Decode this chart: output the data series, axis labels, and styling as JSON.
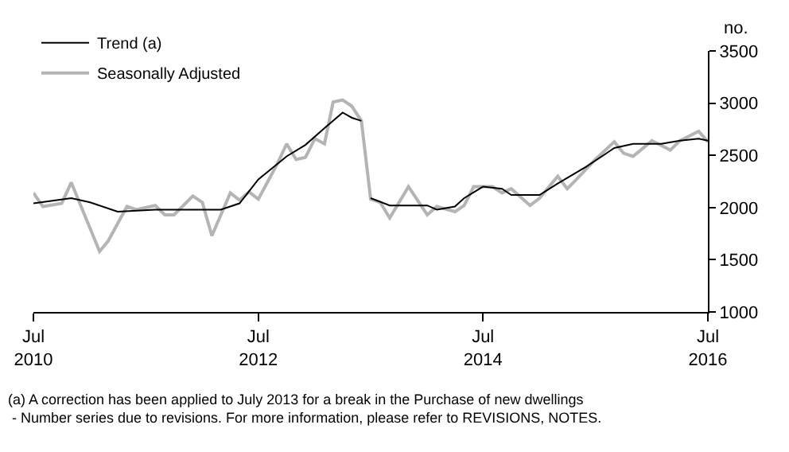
{
  "chart_data": {
    "type": "line",
    "ylabel": "no.",
    "xlim": [
      "2010-07",
      "2016-07"
    ],
    "xticks": [
      {
        "value": "2010-07",
        "label": "Jul\n2010"
      },
      {
        "value": "2012-07",
        "label": "Jul\n2012"
      },
      {
        "value": "2014-07",
        "label": "Jul\n2014"
      },
      {
        "value": "2016-07",
        "label": "Jul\n2016"
      }
    ],
    "ylim": [
      1000,
      3500
    ],
    "yticks": [
      1000,
      1500,
      2000,
      2500,
      3000,
      3500
    ],
    "grid": false,
    "legend": "top left",
    "marker": "none",
    "line_style": "solid",
    "annotations": [
      "(a) A correction has been applied to July 2013 for a break in the Purchase of new dwellings\n - Number series due to revisions. For more information, please refer to REVISIONS, NOTES."
    ],
    "series": [
      {
        "name": "Trend (a)",
        "color": "#000000",
        "x": [
          "2010-07",
          "2010-11",
          "2011-01",
          "2011-04",
          "2011-08",
          "2012-03",
          "2012-05",
          "2012-07",
          "2012-10",
          "2012-12",
          "2013-02",
          "2013-04",
          "2013-05",
          "2013-06",
          "2013-06-20",
          "2013-07",
          "2013-09",
          "2014-01",
          "2014-02",
          "2014-04",
          "2014-05",
          "2014-07",
          "2014-09",
          "2014-10",
          "2015-01",
          "2015-03",
          "2015-06",
          "2015-09",
          "2015-11",
          "2016-02",
          "2016-04",
          "2016-06",
          "2016-07"
        ],
        "values": [
          2040,
          2090,
          2050,
          1960,
          1980,
          1980,
          2040,
          2270,
          2490,
          2600,
          2760,
          2910,
          2860,
          2830,
          null,
          2090,
          2020,
          2020,
          1980,
          2010,
          2090,
          2200,
          2180,
          2120,
          2120,
          2230,
          2390,
          2570,
          2610,
          2610,
          2640,
          2660,
          2640
        ]
      },
      {
        "name": "Seasonally Adjusted",
        "color": "#b4b4b4",
        "x": [
          "2010-07",
          "2010-08",
          "2010-10",
          "2010-11",
          "2011-02",
          "2011-03",
          "2011-05",
          "2011-06",
          "2011-08",
          "2011-09",
          "2011-10",
          "2011-12",
          "2012-01",
          "2012-02",
          "2012-04",
          "2012-05",
          "2012-06",
          "2012-07",
          "2012-09",
          "2012-10",
          "2012-11",
          "2012-12",
          "2013-01",
          "2013-02",
          "2013-03",
          "2013-04",
          "2013-05",
          "2013-06",
          "2013-07",
          "2013-08",
          "2013-09",
          "2013-11",
          "2014-01",
          "2014-02",
          "2014-04",
          "2014-05",
          "2014-06",
          "2014-08",
          "2014-09",
          "2014-10",
          "2014-12",
          "2015-01",
          "2015-03",
          "2015-04",
          "2015-05",
          "2015-07",
          "2015-09",
          "2015-10",
          "2015-11",
          "2016-01",
          "2016-03",
          "2016-04",
          "2016-06",
          "2016-07"
        ],
        "values": [
          2140,
          2010,
          2040,
          2240,
          1580,
          1680,
          2010,
          1980,
          2020,
          1930,
          1930,
          2110,
          2050,
          1730,
          2140,
          2070,
          2150,
          2080,
          2420,
          2610,
          2460,
          2480,
          2660,
          2610,
          3010,
          3030,
          2970,
          2830,
          2080,
          2050,
          1900,
          2200,
          1930,
          2010,
          1960,
          2020,
          2200,
          2200,
          2140,
          2180,
          2020,
          2090,
          2300,
          2180,
          2270,
          2460,
          2630,
          2520,
          2490,
          2640,
          2550,
          2640,
          2730,
          2630
        ]
      }
    ]
  }
}
